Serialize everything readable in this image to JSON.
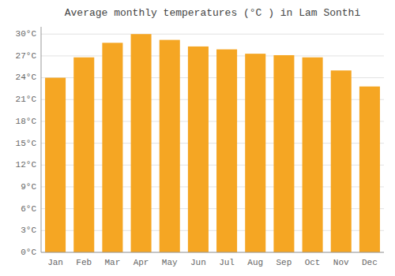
{
  "chart_data": {
    "type": "bar",
    "title": "Average monthly temperatures (°C ) in Lam Sonthi",
    "categories": [
      "Jan",
      "Feb",
      "Mar",
      "Apr",
      "May",
      "Jun",
      "Jul",
      "Aug",
      "Sep",
      "Oct",
      "Nov",
      "Dec"
    ],
    "values": [
      24.0,
      26.8,
      28.8,
      30.0,
      29.2,
      28.3,
      27.9,
      27.3,
      27.1,
      26.8,
      25.0,
      22.8
    ],
    "color": "#F5A623",
    "ylim": [
      0,
      31
    ],
    "yticks": [
      {
        "value": 0,
        "label": "0°C"
      },
      {
        "value": 3,
        "label": "3°C"
      },
      {
        "value": 6,
        "label": "6°C"
      },
      {
        "value": 9,
        "label": "9°C"
      },
      {
        "value": 12,
        "label": "12°C"
      },
      {
        "value": 15,
        "label": "15°C"
      },
      {
        "value": 18,
        "label": "18°C"
      },
      {
        "value": 21,
        "label": "21°C"
      },
      {
        "value": 24,
        "label": "24°C"
      },
      {
        "value": 27,
        "label": "27°C"
      },
      {
        "value": 30,
        "label": "30°C"
      }
    ],
    "grid": true
  }
}
